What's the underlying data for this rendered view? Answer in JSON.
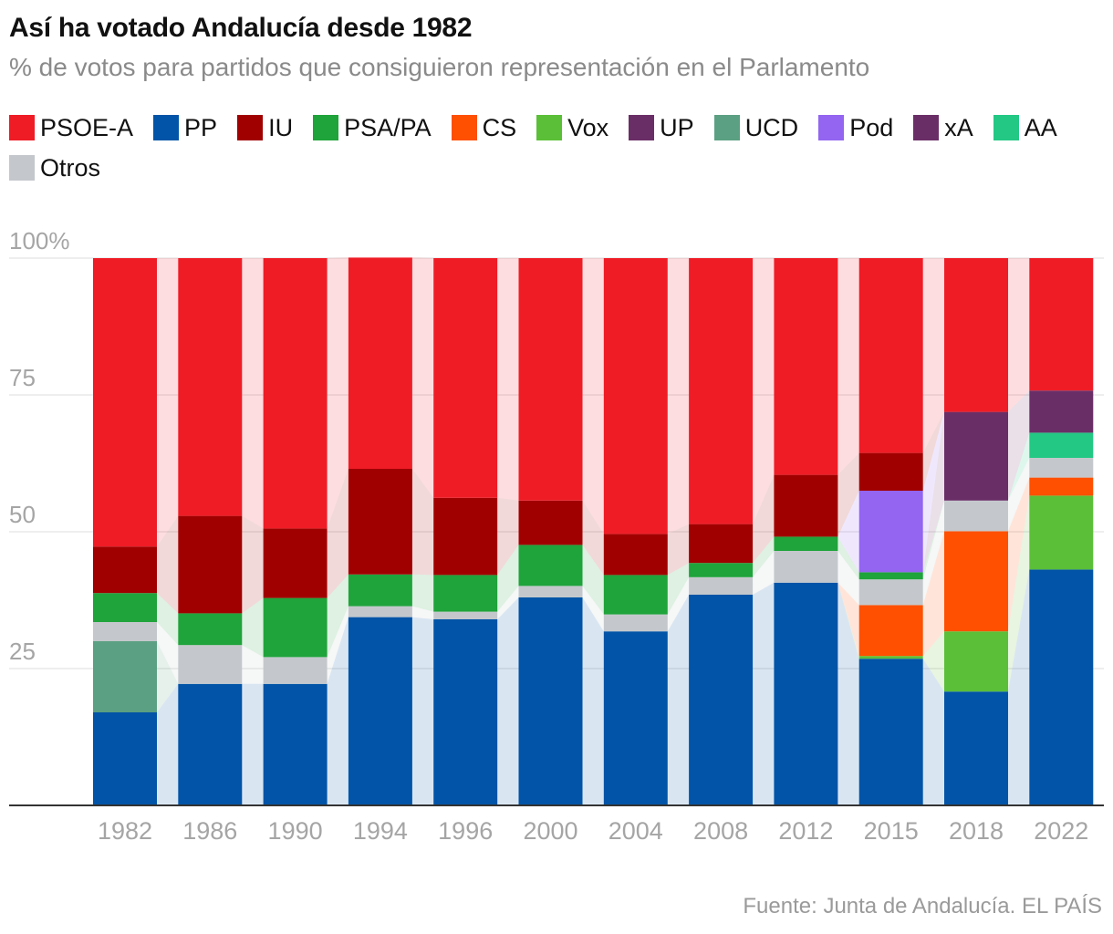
{
  "title": "Así ha votado Andalucía desde 1982",
  "subtitle": "% de votos para partidos que consiguieron representación en el Parlamento",
  "source": "Fuente: Junta de Andalucía. EL PAÍS",
  "chart_data": {
    "type": "bar",
    "stacked": true,
    "categories": [
      "1982",
      "1986",
      "1990",
      "1994",
      "1996",
      "2000",
      "2004",
      "2008",
      "2012",
      "2015",
      "2018",
      "2022"
    ],
    "ylim": [
      0,
      100
    ],
    "yticks": [
      {
        "value": 25,
        "label": "25"
      },
      {
        "value": 50,
        "label": "50"
      },
      {
        "value": 75,
        "label": "75"
      },
      {
        "value": 100,
        "label": "100%"
      }
    ],
    "grid": true,
    "legend_position": "top",
    "series": [
      {
        "name": "PP",
        "color": "#0154a7",
        "values": [
          17.0,
          22.2,
          22.2,
          34.4,
          34.0,
          38.0,
          31.8,
          38.5,
          40.7,
          26.8,
          20.8,
          43.1
        ]
      },
      {
        "name": "UCD",
        "color": "#5ba082",
        "values": [
          13.0,
          0,
          0,
          0,
          0,
          0,
          0,
          0,
          0,
          0,
          0,
          0
        ]
      },
      {
        "name": "Vox",
        "color": "#5bbf38",
        "values": [
          0,
          0,
          0,
          0,
          0,
          0,
          0,
          0,
          0,
          0.5,
          11.0,
          13.5
        ]
      },
      {
        "name": "CS",
        "color": "#fe5000",
        "values": [
          0,
          0,
          0,
          0,
          0,
          0,
          0,
          0,
          0,
          9.3,
          18.3,
          3.3
        ]
      },
      {
        "name": "Otros",
        "color": "#c4c8cc",
        "values": [
          3.5,
          7.1,
          4.9,
          2.0,
          1.4,
          2.1,
          3.1,
          3.2,
          5.8,
          4.7,
          5.6,
          3.6
        ]
      },
      {
        "name": "PSA/PA",
        "color": "#1fa33b",
        "values": [
          5.3,
          5.8,
          10.8,
          5.8,
          6.7,
          7.5,
          7.2,
          2.6,
          2.6,
          1.3,
          0,
          0
        ]
      },
      {
        "name": "AA",
        "color": "#23c885",
        "values": [
          0,
          0,
          0,
          0,
          0,
          0,
          0,
          0,
          0,
          0,
          0,
          4.6
        ]
      },
      {
        "name": "xA",
        "color": "#6a2e67",
        "values": [
          0,
          0,
          0,
          0,
          0,
          0,
          0,
          0,
          0,
          0,
          0,
          7.7
        ]
      },
      {
        "name": "UP",
        "color": "#6a2e67",
        "values": [
          0,
          0,
          0,
          0,
          0,
          0,
          0,
          0,
          0,
          0,
          16.2,
          0
        ]
      },
      {
        "name": "Pod",
        "color": "#9365f1",
        "values": [
          0,
          0,
          0,
          0,
          0,
          0,
          0,
          0,
          0,
          14.9,
          0,
          0
        ]
      },
      {
        "name": "IU",
        "color": "#a10000",
        "values": [
          8.5,
          17.8,
          12.7,
          19.3,
          14.1,
          8.1,
          7.5,
          7.1,
          11.3,
          6.9,
          0,
          0
        ]
      },
      {
        "name": "PSOE-A",
        "color": "#ef1c26",
        "values": [
          52.7,
          47.1,
          49.4,
          38.6,
          43.8,
          44.3,
          50.4,
          48.6,
          39.6,
          35.6,
          28.1,
          24.2
        ]
      }
    ]
  },
  "legend": [
    {
      "name": "PSOE-A",
      "color": "#ef1c26"
    },
    {
      "name": "PP",
      "color": "#0154a7"
    },
    {
      "name": "IU",
      "color": "#a10000"
    },
    {
      "name": "PSA/PA",
      "color": "#1fa33b"
    },
    {
      "name": "CS",
      "color": "#fe5000"
    },
    {
      "name": "Vox",
      "color": "#5bbf38"
    },
    {
      "name": "UP",
      "color": "#6a2e67"
    },
    {
      "name": "UCD",
      "color": "#5ba082"
    },
    {
      "name": "Pod",
      "color": "#9365f1"
    },
    {
      "name": "xA",
      "color": "#6a2e67"
    },
    {
      "name": "AA",
      "color": "#23c885"
    },
    {
      "name": "Otros",
      "color": "#c4c8cc"
    }
  ]
}
